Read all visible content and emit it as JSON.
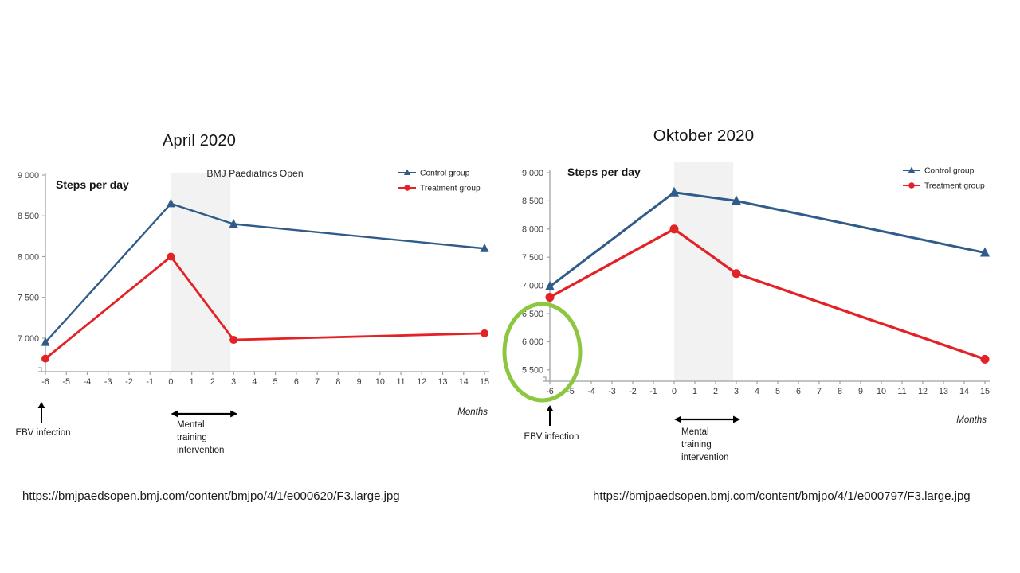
{
  "page": {
    "background": "#ffffff"
  },
  "chart_data": [
    {
      "type": "line",
      "title": "April 2020",
      "inner_label": "Steps per day",
      "watermark": "BMJ Paediatrics Open",
      "caption_url": "https://bmjpaedsopen.bmj.com/content/bmjpo/4/1/e000620/F3.large.jpg",
      "xlabel": "Months",
      "xlim": [
        -6,
        15
      ],
      "x_ticks": [
        -6,
        -5,
        -4,
        -3,
        -2,
        -1,
        0,
        1,
        2,
        3,
        4,
        5,
        6,
        7,
        8,
        9,
        10,
        11,
        12,
        13,
        14,
        15
      ],
      "y_ticks": [
        9000,
        8500,
        8000,
        7500,
        7000
      ],
      "y_tick_labels": [
        "9 000",
        "8 500",
        "8 000",
        "7 500",
        "7 000"
      ],
      "ylim": [
        6590,
        9000
      ],
      "grid": false,
      "legend_position": "top-right",
      "shaded_region": {
        "x0": 0,
        "x1": 2.85,
        "color": "#f2f2f2"
      },
      "legend": [
        {
          "label": "Control group",
          "color": "#2f5c88",
          "marker": "triangle"
        },
        {
          "label": "Treatment group",
          "color": "#e32227",
          "marker": "circle"
        }
      ],
      "series": [
        {
          "name": "Control group",
          "color": "#2f5c88",
          "marker": "triangle",
          "points": [
            [
              -6,
              6950
            ],
            [
              0,
              8650
            ],
            [
              3,
              8400
            ],
            [
              15,
              8100
            ]
          ]
        },
        {
          "name": "Treatment group",
          "color": "#e32227",
          "marker": "circle",
          "points": [
            [
              -6,
              6750
            ],
            [
              0,
              8000
            ],
            [
              3,
              6980
            ],
            [
              15,
              7060
            ]
          ]
        }
      ],
      "annotations": {
        "ebv": {
          "text": "EBV infection",
          "x": -6
        },
        "intervention": {
          "lines": [
            "Mental",
            "training",
            "intervention"
          ],
          "x0": 0,
          "x1": 3
        }
      }
    },
    {
      "type": "line",
      "title": "Oktober 2020",
      "inner_label": "Steps per day",
      "watermark": "",
      "caption_url": "https://bmjpaedsopen.bmj.com/content/bmjpo/4/1/e000797/F3.large.jpg",
      "xlabel": "Months",
      "xlim": [
        -6,
        15
      ],
      "x_ticks": [
        -6,
        -5,
        -4,
        -3,
        -2,
        -1,
        0,
        1,
        2,
        3,
        4,
        5,
        6,
        7,
        8,
        9,
        10,
        11,
        12,
        13,
        14,
        15
      ],
      "y_ticks": [
        9000,
        8500,
        8000,
        7500,
        7000,
        6500,
        6000,
        5500
      ],
      "y_tick_labels": [
        "9 000",
        "8 500",
        "8 000",
        "7 500",
        "7 000",
        "6 500",
        "6 000",
        "5 500"
      ],
      "ylim": [
        5340,
        9000
      ],
      "grid": false,
      "legend_position": "top-right",
      "shaded_region": {
        "x0": 0,
        "x1": 2.85,
        "color": "#f2f2f2"
      },
      "legend": [
        {
          "label": "Control group",
          "color": "#2f5c88",
          "marker": "triangle"
        },
        {
          "label": "Treatment group",
          "color": "#e32227",
          "marker": "circle"
        }
      ],
      "series": [
        {
          "name": "Control group",
          "color": "#2f5c88",
          "marker": "triangle",
          "points": [
            [
              -6,
              6980
            ],
            [
              0,
              8650
            ],
            [
              3,
              8500
            ],
            [
              15,
              7580
            ]
          ]
        },
        {
          "name": "Treatment group",
          "color": "#e32227",
          "marker": "circle",
          "points": [
            [
              -6,
              6790
            ],
            [
              0,
              8000
            ],
            [
              3,
              7210
            ],
            [
              15,
              5690
            ]
          ]
        }
      ],
      "annotations": {
        "ebv": {
          "text": "EBV infection",
          "x": -6
        },
        "intervention": {
          "lines": [
            "Mental",
            "training",
            "intervention"
          ],
          "x0": 0,
          "x1": 3
        }
      },
      "highlight": {
        "shape": "ellipse",
        "color": "#8dc63f",
        "around": "y-axis values 5 500 to 6 500"
      }
    }
  ]
}
